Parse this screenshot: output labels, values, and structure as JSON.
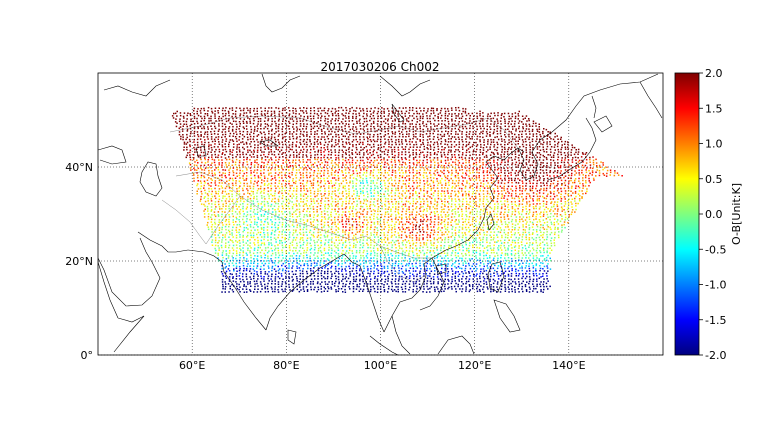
{
  "title": "2017030206 Ch002",
  "map": {
    "lon_range": [
      40,
      160
    ],
    "lat_range": [
      0,
      60
    ],
    "meridians": [
      60,
      80,
      100,
      120,
      140
    ],
    "parallels": [
      0,
      20,
      40
    ],
    "meridian_labels": [
      "60°E",
      "80°E",
      "100°E",
      "120°E",
      "140°E"
    ],
    "parallel_labels": [
      "0°",
      "20°N",
      "40°N"
    ],
    "grid": "dotted"
  },
  "colorbar": {
    "label": "O-B[Unit:K]",
    "range": [
      -2.0,
      2.0
    ],
    "ticks": [
      "-2.0",
      "-1.5",
      "-1.0",
      "-0.5",
      "0.0",
      "0.5",
      "1.0",
      "1.5",
      "2.0"
    ],
    "colormap": "jet",
    "colors": [
      "#00007f",
      "#0000ff",
      "#007fff",
      "#00ffff",
      "#7fff7f",
      "#ffff00",
      "#ff7f00",
      "#ff0000",
      "#7f0000"
    ]
  }
}
